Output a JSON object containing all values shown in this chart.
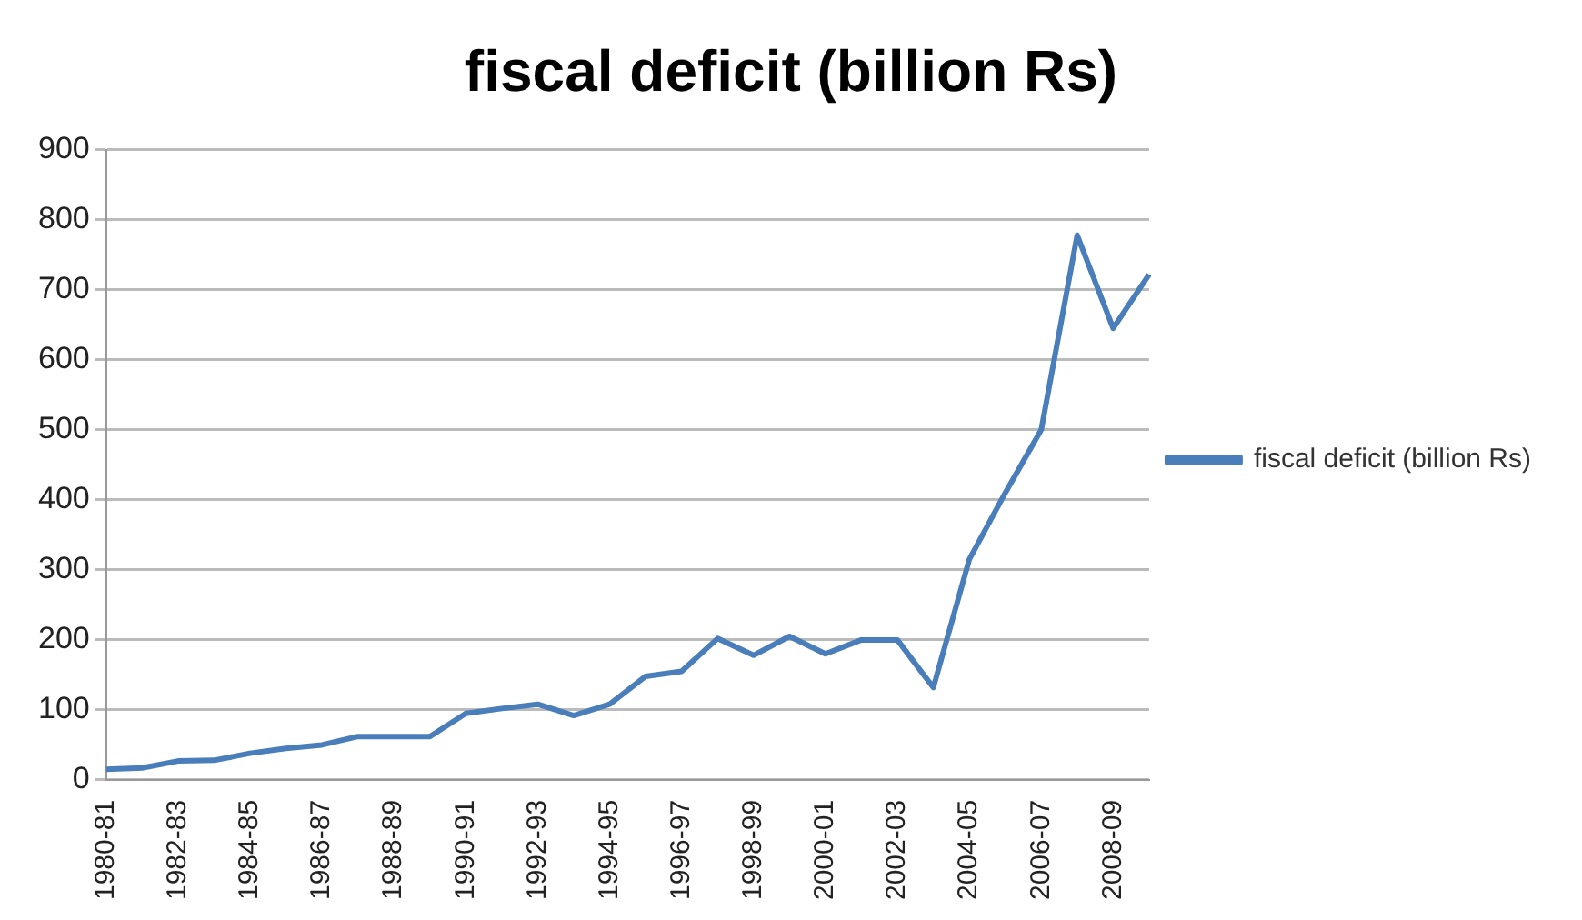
{
  "chart_data": {
    "type": "line",
    "title": "fiscal deficit (billion Rs)",
    "categories": [
      "1980-81",
      null,
      "1982-83",
      null,
      "1984-85",
      null,
      "1986-87",
      null,
      "1988-89",
      null,
      "1990-91",
      null,
      "1992-93",
      null,
      "1994-95",
      null,
      "1996-97",
      null,
      "1998-99",
      null,
      "2000-01",
      null,
      "2002-03",
      null,
      "2004-05",
      null,
      "2006-07",
      null,
      "2008-09",
      null
    ],
    "series": [
      {
        "name": "fiscal deficit (billion Rs)",
        "color": "#4a7ebb",
        "values": [
          15,
          17,
          27,
          28,
          38,
          45,
          50,
          62,
          62,
          62,
          95,
          102,
          108,
          92,
          108,
          148,
          155,
          202,
          178,
          205,
          180,
          200,
          200,
          132,
          315,
          410,
          500,
          778,
          645,
          722
        ]
      }
    ],
    "ylim": [
      0,
      900
    ],
    "yticks": [
      0,
      100,
      200,
      300,
      400,
      500,
      600,
      700,
      800,
      900
    ],
    "grid": "y",
    "legend": "right",
    "marker": "none",
    "line_style": "solid"
  }
}
